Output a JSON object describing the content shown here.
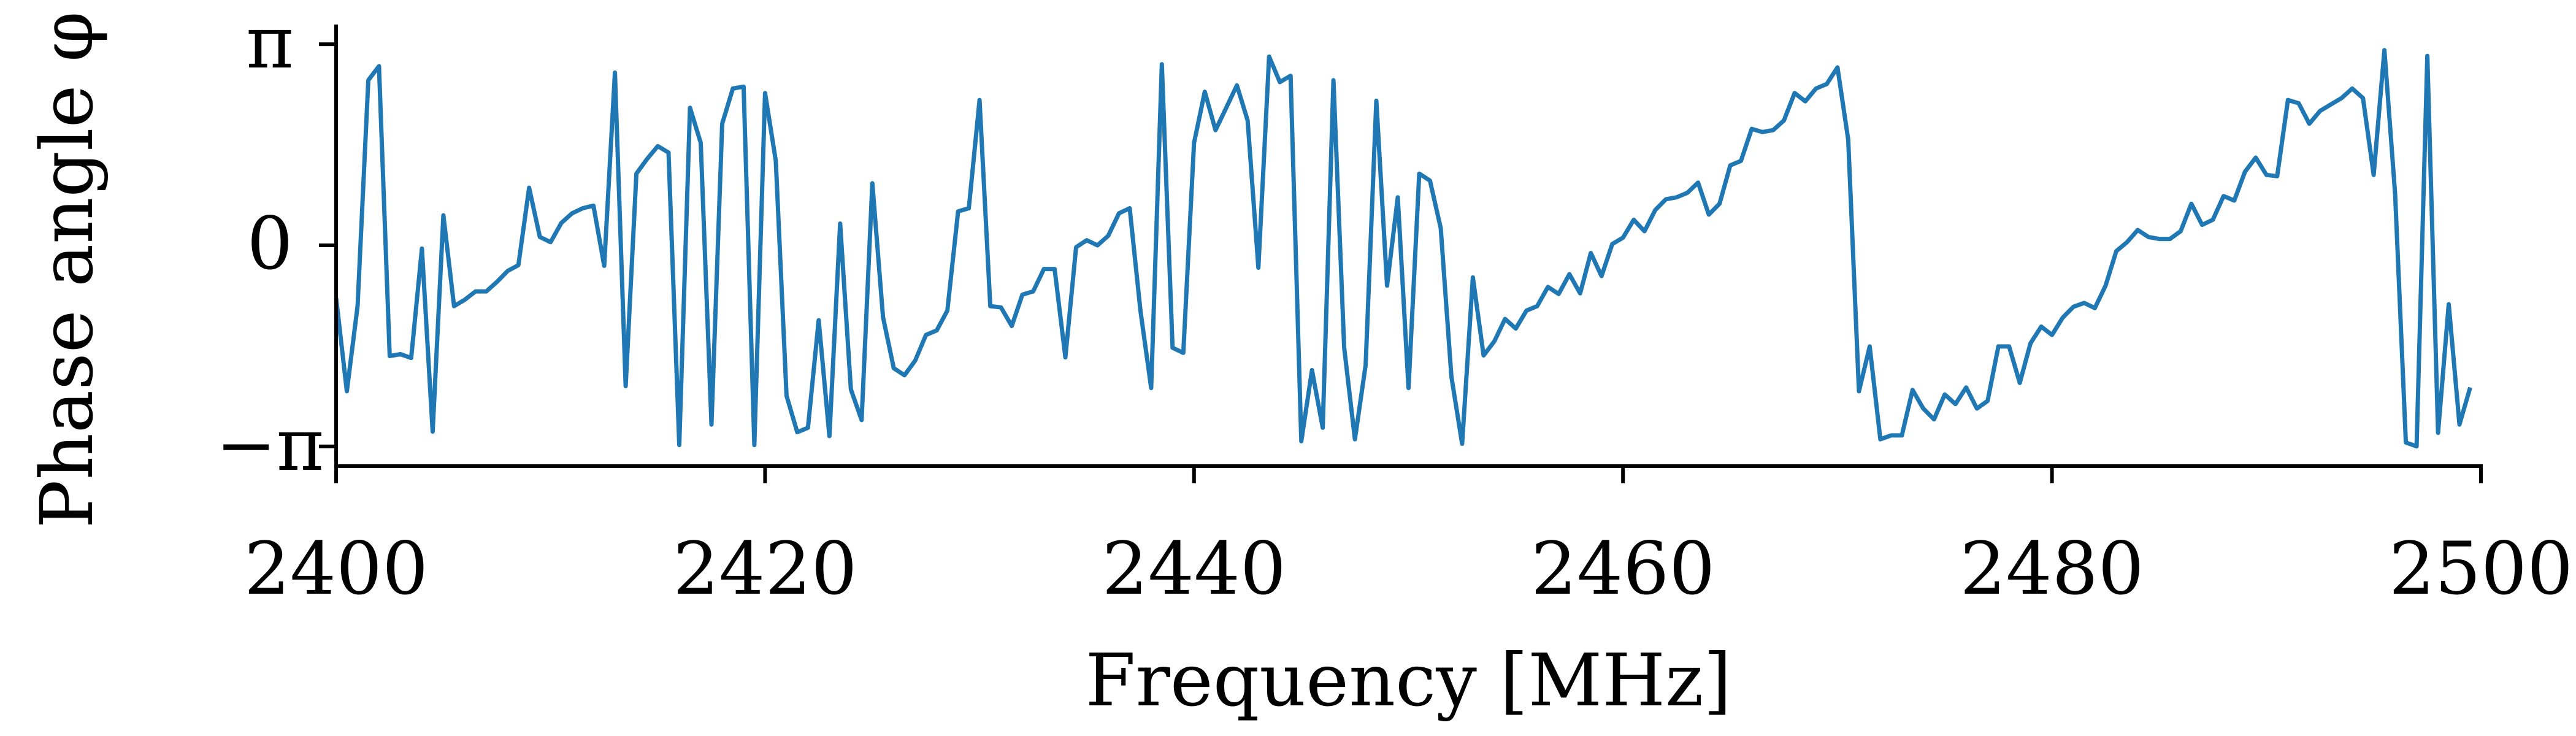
{
  "chart_data": {
    "type": "line",
    "xlabel": "Frequency [MHz]",
    "ylabel": "Phase angle φ",
    "xlim": [
      2400,
      2500
    ],
    "ylim": [
      -3.45,
      3.45
    ],
    "xticks": [
      2400,
      2420,
      2440,
      2460,
      2480,
      2500
    ],
    "xtick_labels": [
      "2400",
      "2420",
      "2440",
      "2460",
      "2480",
      "2500"
    ],
    "yticks": [
      -3.14159,
      0,
      3.14159
    ],
    "ytick_labels": [
      "−π",
      "0",
      "π"
    ],
    "grid": false,
    "series": [
      {
        "color": "#1f77b4",
        "x": [
          2400.0,
          2400.5,
          2401.0,
          2401.5,
          2402.0,
          2402.5,
          2403.0,
          2403.5,
          2404.0,
          2404.5,
          2405.0,
          2405.5,
          2406.0,
          2406.5,
          2407.0,
          2407.5,
          2408.0,
          2408.5,
          2409.0,
          2409.5,
          2410.0,
          2410.5,
          2411.0,
          2411.5,
          2412.0,
          2412.5,
          2413.0,
          2413.5,
          2414.0,
          2414.5,
          2415.0,
          2415.5,
          2416.0,
          2416.5,
          2417.0,
          2417.5,
          2418.0,
          2418.5,
          2419.0,
          2419.5,
          2420.0,
          2420.5,
          2421.0,
          2421.5,
          2422.0,
          2422.5,
          2423.0,
          2423.5,
          2424.0,
          2424.5,
          2425.0,
          2425.5,
          2426.0,
          2426.5,
          2427.0,
          2427.5,
          2428.0,
          2428.5,
          2429.0,
          2429.5,
          2430.0,
          2430.5,
          2431.0,
          2431.5,
          2432.0,
          2432.5,
          2433.0,
          2433.5,
          2434.0,
          2434.5,
          2435.0,
          2435.5,
          2436.0,
          2436.5,
          2437.0,
          2437.5,
          2438.0,
          2438.5,
          2439.0,
          2439.5,
          2440.0,
          2440.5,
          2441.0,
          2441.5,
          2442.0,
          2442.5,
          2443.0,
          2443.5,
          2444.0,
          2444.5,
          2445.0,
          2445.5,
          2446.0,
          2446.5,
          2447.0,
          2447.5,
          2448.0,
          2448.5,
          2449.0,
          2449.5,
          2450.0,
          2450.5,
          2451.0,
          2451.5,
          2452.0,
          2452.5,
          2453.0,
          2453.5,
          2454.0,
          2454.5,
          2455.0,
          2455.5,
          2456.0,
          2456.5,
          2457.0,
          2457.5,
          2458.0,
          2458.5,
          2459.0,
          2459.5,
          2460.0,
          2460.5,
          2461.0,
          2461.5,
          2462.0,
          2462.5,
          2463.0,
          2463.5,
          2464.0,
          2464.5,
          2465.0,
          2465.5,
          2466.0,
          2466.5,
          2467.0,
          2467.5,
          2468.0,
          2468.5,
          2469.0,
          2469.5,
          2470.0,
          2470.5,
          2471.0,
          2471.5,
          2472.0,
          2472.5,
          2473.0,
          2473.5,
          2474.0,
          2474.5,
          2475.0,
          2475.5,
          2476.0,
          2476.5,
          2477.0,
          2477.5,
          2478.0,
          2478.5,
          2479.0,
          2479.5,
          2480.0,
          2480.5,
          2481.0,
          2481.5,
          2482.0,
          2482.5,
          2483.0,
          2483.5,
          2484.0,
          2484.5,
          2485.0,
          2485.5,
          2486.0,
          2486.5,
          2487.0,
          2487.5,
          2488.0,
          2488.5,
          2489.0,
          2489.5,
          2490.0,
          2490.5,
          2491.0,
          2491.5,
          2492.0,
          2492.5,
          2493.0,
          2493.5,
          2494.0,
          2494.5,
          2495.0,
          2495.5,
          2496.0,
          2496.5,
          2497.0,
          2497.5,
          2498.0,
          2498.5,
          2499.0,
          2499.5
        ],
        "y": [
          -0.82,
          -2.28,
          -0.95,
          2.58,
          2.8,
          -1.73,
          -1.7,
          -1.76,
          -0.05,
          -2.91,
          0.47,
          -0.95,
          -0.85,
          -0.72,
          -0.72,
          -0.57,
          -0.4,
          -0.31,
          0.9,
          0.13,
          0.05,
          0.35,
          0.5,
          0.58,
          0.62,
          -0.32,
          2.7,
          -2.2,
          1.12,
          1.35,
          1.55,
          1.45,
          -3.12,
          2.15,
          1.6,
          -2.8,
          1.9,
          2.45,
          2.48,
          -3.12,
          2.38,
          1.32,
          -2.35,
          -2.92,
          -2.85,
          -1.17,
          -2.98,
          0.34,
          -2.25,
          -2.73,
          0.97,
          -1.12,
          -1.92,
          -2.03,
          -1.8,
          -1.4,
          -1.33,
          -1.02,
          0.53,
          0.58,
          2.27,
          -0.95,
          -0.97,
          -1.26,
          -0.77,
          -0.72,
          -0.37,
          -0.37,
          -1.75,
          -0.03,
          0.08,
          0.0,
          0.15,
          0.5,
          0.58,
          -1.02,
          -2.23,
          2.83,
          -1.6,
          -1.68,
          1.6,
          2.4,
          1.8,
          2.15,
          2.5,
          1.95,
          -0.35,
          2.95,
          2.55,
          2.65,
          -3.06,
          -1.95,
          -2.85,
          2.58,
          -1.6,
          -3.03,
          -1.87,
          2.26,
          -0.63,
          0.75,
          -2.23,
          1.12,
          1.01,
          0.27,
          -2.05,
          -3.1,
          -0.5,
          -1.72,
          -1.5,
          -1.15,
          -1.3,
          -1.02,
          -0.95,
          -0.65,
          -0.76,
          -0.45,
          -0.75,
          -0.12,
          -0.48,
          0.02,
          0.12,
          0.4,
          0.22,
          0.55,
          0.72,
          0.75,
          0.82,
          0.98,
          0.48,
          0.65,
          1.25,
          1.32,
          1.82,
          1.77,
          1.8,
          1.95,
          2.38,
          2.25,
          2.45,
          2.52,
          2.78,
          1.65,
          -2.28,
          -1.58,
          -3.03,
          -2.97,
          -2.97,
          -2.26,
          -2.55,
          -2.72,
          -2.33,
          -2.48,
          -2.22,
          -2.55,
          -2.43,
          -1.58,
          -1.58,
          -2.15,
          -1.53,
          -1.27,
          -1.4,
          -1.13,
          -0.96,
          -0.9,
          -0.98,
          -0.63,
          -0.09,
          0.05,
          0.24,
          0.13,
          0.1,
          0.1,
          0.22,
          0.65,
          0.32,
          0.4,
          0.77,
          0.7,
          1.15,
          1.37,
          1.1,
          1.08,
          2.27,
          2.22,
          1.9,
          2.1,
          2.2,
          2.3,
          2.45,
          2.3,
          1.1,
          3.05,
          0.8,
          -3.08,
          -3.14,
          2.96,
          -2.93,
          -0.92,
          -2.8,
          -2.22
        ]
      }
    ]
  }
}
